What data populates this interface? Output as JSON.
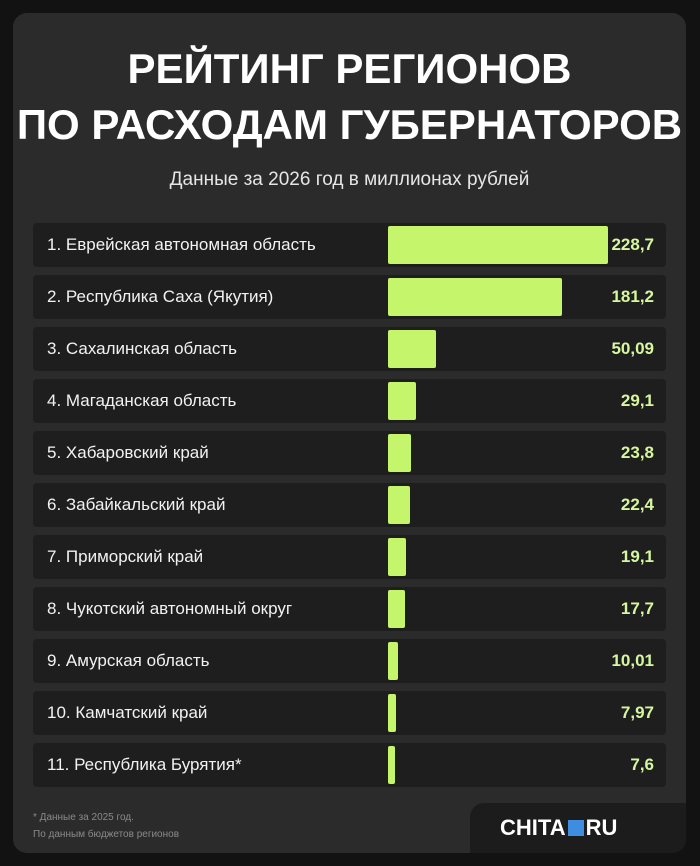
{
  "header": {
    "title_line1": "РЕЙТИНГ РЕГИОНОВ",
    "title_line2": "ПО РАСХОДАМ ГУБЕРНАТОРОВ",
    "subtitle": "Данные за 2026 год в миллионах рублей"
  },
  "chart_data": {
    "type": "bar",
    "orientation": "horizontal",
    "title": "РЕЙТИНГ РЕГИОНОВ ПО РАСХОДАМ ГУБЕРНАТОРОВ",
    "subtitle": "Данные за 2026 год в миллионах рублей",
    "xlabel": "",
    "ylabel": "",
    "grid": false,
    "legend": "none",
    "categories": [
      "1. Еврейская автономная область",
      "2. Республика Саха (Якутия)",
      "3. Сахалинская область",
      "4. Магаданская область",
      "5. Хабаровский край",
      "6. Забайкальский край",
      "7. Приморский край",
      "8. Чукотский автономный округ",
      "9. Амурская область",
      "10. Камчатский край",
      "11. Республика Бурятия*"
    ],
    "values": [
      228.7,
      181.2,
      50.09,
      29.1,
      23.8,
      22.4,
      19.1,
      17.7,
      10.01,
      7.97,
      7.6
    ],
    "value_labels": [
      "228,7",
      "181,2",
      "50,09",
      "29,1",
      "23,8",
      "22,4",
      "19,1",
      "17,7",
      "10,01",
      "7,97",
      "7,6"
    ],
    "xlim": [
      0,
      228.7
    ],
    "bar_color": "#c4f56a"
  },
  "footer": {
    "note": "* Данные за 2025 год.",
    "source": "По данным бюджетов регионов"
  },
  "logo": {
    "left": "CHITA",
    "right": "RU"
  },
  "colors": {
    "background": "#121212",
    "card": "#2b2b2b",
    "row": "#1e1e1e",
    "bar": "#c4f56a",
    "value": "#d6f7a0",
    "logo_square": "#3d8ee0"
  }
}
